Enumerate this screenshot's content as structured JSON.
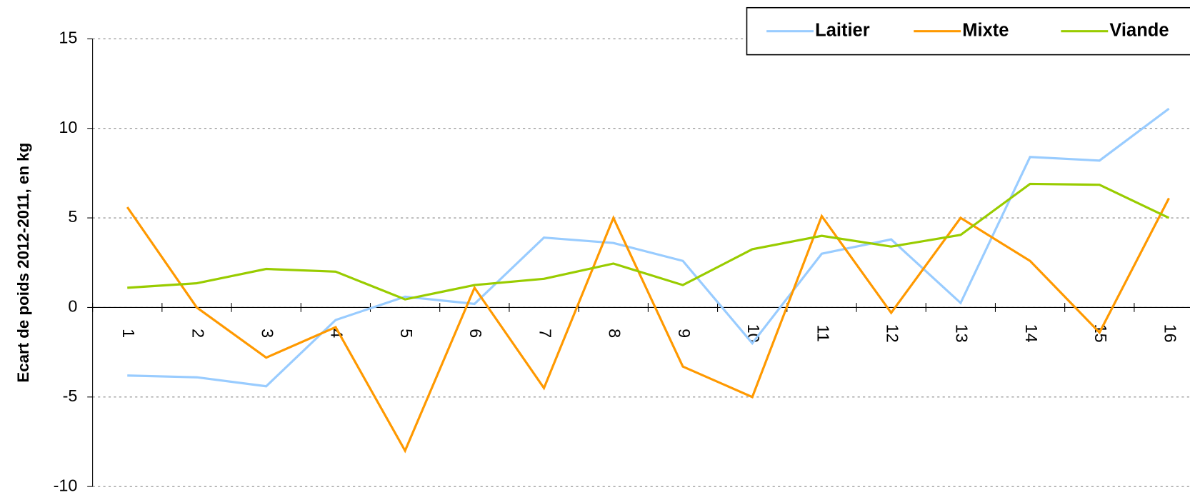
{
  "chart_data": {
    "type": "line",
    "y_label": "Ecart de poids 2012-2011, en kg",
    "categories": [
      "1",
      "2",
      "3",
      "4",
      "5",
      "6",
      "7",
      "8",
      "9",
      "10",
      "11",
      "12",
      "13",
      "14",
      "15",
      "16"
    ],
    "series": [
      {
        "name": "Laitier",
        "color": "#99ccff",
        "values": [
          -3.8,
          -3.9,
          -4.4,
          -0.7,
          0.6,
          0.2,
          3.9,
          3.6,
          2.6,
          -2.0,
          3.0,
          3.8,
          0.25,
          8.4,
          8.2,
          11.1
        ]
      },
      {
        "name": "Mixte",
        "color": "#ff9900",
        "values": [
          5.6,
          0,
          -2.8,
          -1.1,
          -8.0,
          1.1,
          -4.5,
          5.0,
          -3.3,
          -5.0,
          5.1,
          -0.3,
          5.0,
          2.6,
          -1.4,
          6.1
        ]
      },
      {
        "name": "Viande",
        "color": "#99cc00",
        "values": [
          1.1,
          1.35,
          2.15,
          2.0,
          0.45,
          1.25,
          1.6,
          2.45,
          1.25,
          3.25,
          4.0,
          3.4,
          4.05,
          6.9,
          6.85,
          5.0
        ]
      }
    ],
    "ylim": [
      -10,
      15
    ],
    "yticks": [
      -10,
      -5,
      0,
      5,
      10,
      15
    ],
    "grid": true,
    "legend": "top-right"
  }
}
